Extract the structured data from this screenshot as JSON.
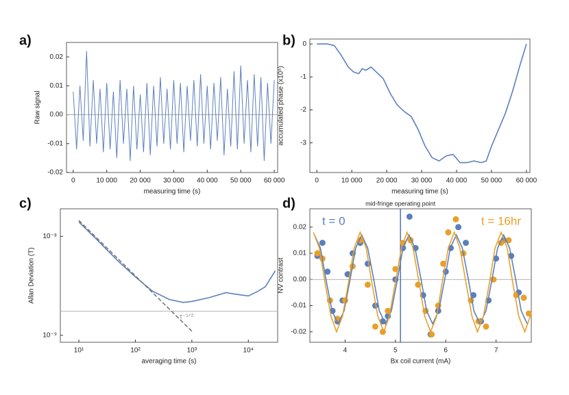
{
  "chart_data": [
    {
      "type": "line",
      "panel_label": "a)",
      "xlabel": "measuring time (s)",
      "ylabel": "Raw signal",
      "xlim": [
        -2000,
        61000
      ],
      "ylim": [
        -0.02,
        0.025
      ],
      "zero_line": true,
      "xticks": [
        0,
        {
          "value": 10000,
          "label": "10 000"
        },
        {
          "value": 20000,
          "label": "20 000"
        },
        {
          "value": 30000,
          "label": "30 000"
        },
        {
          "value": 40000,
          "label": "40 000"
        },
        {
          "value": 50000,
          "label": "50 000"
        },
        {
          "value": 60000,
          "label": "60 000"
        }
      ],
      "yticks": [
        -0.02,
        -0.01,
        {
          "value": 0,
          "label": "0.00"
        },
        0.01,
        0.02
      ],
      "series": [
        {
          "color": "#5b7fbc",
          "style": "line",
          "x": [
            0,
            1000,
            2000,
            3000,
            4000,
            5000,
            6000,
            7000,
            8000,
            9000,
            10000,
            11000,
            12000,
            13000,
            14000,
            15000,
            16000,
            17000,
            18000,
            19000,
            20000,
            21000,
            22000,
            23000,
            24000,
            25000,
            26000,
            27000,
            28000,
            29000,
            30000,
            31000,
            32000,
            33000,
            34000,
            35000,
            36000,
            37000,
            38000,
            39000,
            40000,
            41000,
            42000,
            43000,
            44000,
            45000,
            46000,
            47000,
            48000,
            49000,
            50000,
            51000,
            52000,
            53000,
            54000,
            55000,
            56000,
            57000,
            58000,
            59000,
            60000
          ],
          "values": [
            0.008,
            -0.012,
            0.01,
            -0.009,
            0.022,
            -0.011,
            0.012,
            -0.01,
            0.009,
            -0.013,
            0.011,
            -0.012,
            0.008,
            -0.015,
            0.012,
            -0.01,
            0.009,
            -0.016,
            0.01,
            -0.012,
            0.007,
            -0.013,
            0.011,
            -0.014,
            0.01,
            -0.011,
            0.013,
            -0.01,
            0.009,
            -0.012,
            0.012,
            -0.01,
            0.011,
            -0.013,
            0.01,
            -0.009,
            0.012,
            -0.011,
            0.014,
            -0.01,
            0.01,
            -0.012,
            0.011,
            -0.009,
            0.013,
            -0.014,
            0.009,
            -0.011,
            0.015,
            -0.012,
            0.017,
            -0.01,
            0.012,
            -0.013,
            0.014,
            -0.011,
            0.013,
            -0.016,
            0.011,
            -0.01,
            0.012
          ]
        }
      ]
    },
    {
      "type": "line",
      "panel_label": "b)",
      "xlabel": "measuring time (s)",
      "ylabel": "accumulated phase (x10⁵)",
      "xlim": [
        -2000,
        61000
      ],
      "ylim": [
        -3.9,
        0.15
      ],
      "xticks": [
        0,
        {
          "value": 10000,
          "label": "10 000"
        },
        {
          "value": 20000,
          "label": "20 000"
        },
        {
          "value": 30000,
          "label": "30 000"
        },
        {
          "value": 40000,
          "label": "40 000"
        },
        {
          "value": 50000,
          "label": "50 000"
        },
        {
          "value": 60000,
          "label": "60 000"
        }
      ],
      "yticks": [
        -3,
        -2,
        -1,
        0
      ],
      "series": [
        {
          "color": "#5b7fbc",
          "style": "line",
          "x": [
            0,
            3000,
            5000,
            7000,
            9000,
            10500,
            12000,
            13000,
            14000,
            15500,
            17000,
            19000,
            21000,
            23000,
            25000,
            27000,
            29000,
            31000,
            33000,
            35000,
            37000,
            39000,
            41000,
            43000,
            45000,
            47000,
            48500,
            50000,
            52000,
            54000,
            56000,
            58000,
            60000
          ],
          "values": [
            0,
            0,
            -0.05,
            -0.35,
            -0.7,
            -0.85,
            -0.9,
            -0.75,
            -0.8,
            -0.7,
            -0.85,
            -1.05,
            -1.5,
            -1.85,
            -2.05,
            -2.2,
            -2.6,
            -3.1,
            -3.45,
            -3.55,
            -3.4,
            -3.35,
            -3.6,
            -3.6,
            -3.55,
            -3.6,
            -3.55,
            -3.1,
            -2.6,
            -2.1,
            -1.45,
            -0.7,
            0
          ]
        }
      ]
    },
    {
      "type": "line",
      "panel_label": "c)",
      "xlabel": "averaging time (s)",
      "ylabel": "Allan Deviation (T)",
      "xscale": "log",
      "yscale": "log",
      "xlim": [
        4.7,
        33000
      ],
      "ylim": [
        8.5e-10,
        1.9e-08
      ],
      "xticks": [
        {
          "value": 10,
          "label": "10¹"
        },
        {
          "value": 100,
          "label": "10²"
        },
        {
          "value": 1000,
          "label": "10³"
        },
        {
          "value": 10000,
          "label": "10⁴"
        }
      ],
      "yticks": [
        {
          "value": 1e-09,
          "label": "10⁻⁹"
        },
        {
          "value": 1e-08,
          "label": "10⁻⁸"
        }
      ],
      "hline": 1.75e-09,
      "annotation": "τ⁻¹ᐟ²",
      "series": [
        {
          "color": "#5b7fbc",
          "style": "line",
          "x": [
            10,
            20,
            50,
            100,
            200,
            400,
            700,
            1000,
            2000,
            4000,
            6000,
            10000,
            15000,
            20000,
            30000
          ],
          "values": [
            1.4e-08,
            9.5e-09,
            5.6e-09,
            3.9e-09,
            2.8e-09,
            2.3e-09,
            2.15e-09,
            2.2e-09,
            2.4e-09,
            2.7e-09,
            2.6e-09,
            2.5e-09,
            2.8e-09,
            3.1e-09,
            4.5e-09
          ]
        },
        {
          "color": "#777777",
          "style": "dashed",
          "x": [
            10,
            1000
          ],
          "values": [
            1.45e-08,
            1.1e-09
          ]
        }
      ]
    },
    {
      "type": "scatter",
      "panel_label": "d)",
      "xlabel": "Bx coil current (mA)",
      "ylabel": "NV contrast",
      "xlim": [
        3.3,
        7.7
      ],
      "ylim": [
        -0.024,
        0.027
      ],
      "zero_line": true,
      "xticks": [
        4,
        5,
        6,
        7
      ],
      "yticks": [
        {
          "value": -0.02,
          "label": "-0.02"
        },
        {
          "value": -0.01,
          "label": "-0.01"
        },
        {
          "value": 0,
          "label": "0.00"
        },
        {
          "value": 0.01,
          "label": "0.01"
        },
        {
          "value": 0.02,
          "label": "0.02"
        }
      ],
      "vline": 5.1,
      "vline_label": "mid-fringe operating point",
      "series": [
        {
          "name": "t = 0",
          "color": "#5b7fbc",
          "style": "markers",
          "x": [
            3.45,
            3.55,
            3.65,
            3.75,
            3.85,
            3.95,
            4.05,
            4.15,
            4.3,
            4.45,
            4.6,
            4.75,
            4.85,
            5.0,
            5.15,
            5.28,
            5.4,
            5.55,
            5.7,
            5.85,
            6.0,
            6.1,
            6.25,
            6.4,
            6.55,
            6.7,
            6.85,
            7.0,
            7.15,
            7.3,
            7.45,
            7.55
          ],
          "values": [
            0.009,
            0.014,
            0.003,
            -0.012,
            -0.016,
            -0.008,
            0.002,
            0.01,
            0.014,
            0.006,
            -0.01,
            -0.016,
            -0.014,
            0,
            0.012,
            0.024,
            0.012,
            -0.006,
            -0.021,
            -0.012,
            0.003,
            0.012,
            0.02,
            0.014,
            -0.006,
            -0.016,
            -0.008,
            0.008,
            0.015,
            0.009,
            -0.005,
            -0.007
          ]
        },
        {
          "name": "t = 16hr",
          "color": "#e8a02a",
          "style": "markers",
          "x": [
            3.45,
            3.55,
            3.7,
            3.85,
            4.0,
            4.15,
            4.3,
            4.45,
            4.6,
            4.75,
            4.85,
            5.0,
            5.15,
            5.3,
            5.45,
            5.6,
            5.72,
            5.85,
            5.95,
            6.05,
            6.2,
            6.35,
            6.5,
            6.65,
            6.8,
            6.95,
            7.1,
            7.25,
            7.4,
            7.55,
            7.65
          ],
          "values": [
            0.01,
            0.008,
            -0.008,
            -0.015,
            -0.008,
            0.005,
            0.015,
            -0.002,
            -0.018,
            -0.02,
            -0.012,
            0.004,
            0.014,
            0.015,
            -0.002,
            -0.012,
            -0.021,
            -0.01,
            0.006,
            0.018,
            0.023,
            0.01,
            -0.008,
            -0.016,
            -0.018,
            0,
            0.014,
            0.015,
            -0.006,
            -0.007,
            -0.013
          ]
        },
        {
          "color": "#5b7fbc",
          "style": "line",
          "x": [
            3.39,
            3.51,
            3.62,
            3.74,
            3.86,
            3.98,
            4.1,
            4.21,
            4.33,
            4.45,
            4.57,
            4.68,
            4.8,
            4.92,
            5.04,
            5.15,
            5.27,
            5.39,
            5.51,
            5.62,
            5.74,
            5.86,
            5.98,
            6.09,
            6.21,
            6.33,
            6.45,
            6.56,
            6.68,
            6.8,
            6.92,
            7.03,
            7.15,
            7.27,
            7.39,
            7.5,
            7.62
          ],
          "values": [
            0.017,
            0.012,
            0,
            -0.012,
            -0.017,
            -0.012,
            0,
            0.012,
            0.017,
            0.012,
            0,
            -0.012,
            -0.017,
            -0.012,
            0,
            0.012,
            0.017,
            0.012,
            0,
            -0.012,
            -0.017,
            -0.012,
            0,
            0.012,
            0.017,
            0.012,
            0,
            -0.012,
            -0.017,
            -0.012,
            0,
            0.012,
            0.017,
            0.012,
            0,
            -0.012,
            -0.017
          ]
        },
        {
          "color": "#e8a02a",
          "style": "line",
          "x": [
            3.37,
            3.49,
            3.6,
            3.72,
            3.83,
            3.95,
            4.07,
            4.18,
            4.3,
            4.42,
            4.53,
            4.65,
            4.77,
            4.88,
            5.0,
            5.12,
            5.23,
            5.35,
            5.47,
            5.58,
            5.7,
            5.82,
            5.93,
            6.05,
            6.17,
            6.28,
            6.4,
            6.52,
            6.63,
            6.75,
            6.87,
            6.98,
            7.1,
            7.22,
            7.33,
            7.45,
            7.57,
            7.68
          ],
          "values": [
            0.018,
            0.012,
            -0.001,
            -0.014,
            -0.02,
            -0.014,
            -0.001,
            0.012,
            0.018,
            0.012,
            -0.001,
            -0.014,
            -0.02,
            -0.014,
            -0.001,
            0.012,
            0.018,
            0.012,
            -0.001,
            -0.014,
            -0.02,
            -0.014,
            -0.001,
            0.012,
            0.018,
            0.012,
            -0.001,
            -0.014,
            -0.02,
            -0.014,
            -0.001,
            0.012,
            0.018,
            0.012,
            -0.001,
            -0.014,
            -0.02,
            -0.014
          ]
        }
      ]
    }
  ]
}
